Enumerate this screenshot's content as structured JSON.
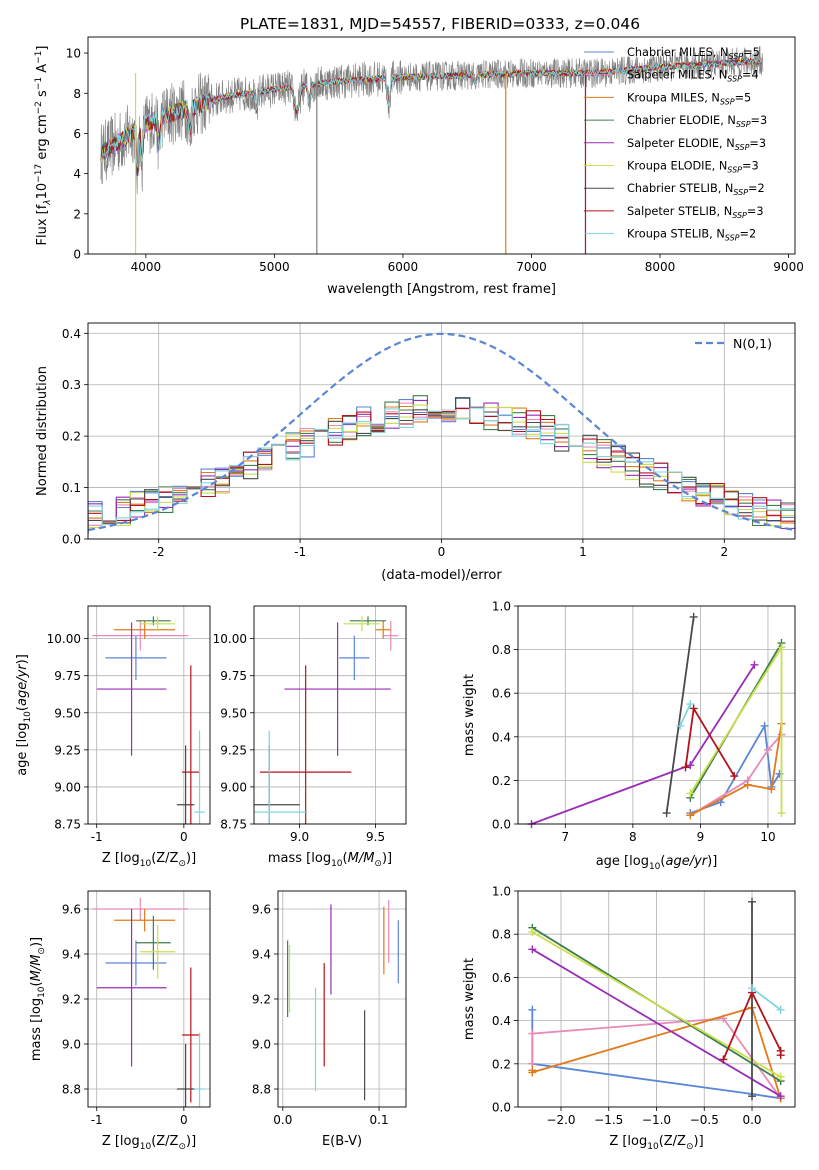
{
  "figure_title": "PLATE=1831, MJD=54557, FIBERID=0333, z=0.046",
  "colors": {
    "Chabrier MILES": "#5b86d6",
    "Salpeter MILES": "#e88ab8",
    "Kroupa MILES": "#e07b1c",
    "Chabrier ELODIE": "#3f7f4d",
    "Salpeter ELODIE": "#9a2db8",
    "Kroupa ELODIE": "#c9e04a",
    "Chabrier STELIB": "#4a4a4a",
    "Salpeter STELIB": "#b3141c",
    "Kroupa STELIB": "#7fd6e0",
    "data": "#808080",
    "normal": "#5b86d6",
    "grid": "#b0b0b0"
  },
  "chart_data": [
    {
      "id": "spectrum",
      "type": "line",
      "title": "PLATE=1831, MJD=54557, FIBERID=0333, z=0.046",
      "xlabel": "wavelength [Angstrom, rest frame]",
      "ylabel": "Flux [f_λ 10^-17 erg cm^-2 s^-1 A^-1]",
      "xlim": [
        3550,
        9050
      ],
      "ylim": [
        0,
        10.8
      ],
      "xticks": [
        4000,
        5000,
        6000,
        7000,
        8000,
        9000
      ],
      "yticks": [
        0,
        2,
        4,
        6,
        8,
        10
      ],
      "grid": false,
      "legend_position": "right",
      "legend": [
        {
          "label": "Chabrier MILES, N",
          "sub": "SSP",
          "suffix": "=5"
        },
        {
          "label": "Salpeter MILES, N",
          "sub": "SSP",
          "suffix": "=4"
        },
        {
          "label": "Kroupa MILES, N",
          "sub": "SSP",
          "suffix": "=5"
        },
        {
          "label": "Chabrier ELODIE, N",
          "sub": "SSP",
          "suffix": "=3"
        },
        {
          "label": "Salpeter ELODIE, N",
          "sub": "SSP",
          "suffix": "=3"
        },
        {
          "label": "Kroupa ELODIE, N",
          "sub": "SSP",
          "suffix": "=3"
        },
        {
          "label": "Chabrier STELIB, N",
          "sub": "SSP",
          "suffix": "=2"
        },
        {
          "label": "Salpeter STELIB, N",
          "sub": "SSP",
          "suffix": "=3"
        },
        {
          "label": "Kroupa STELIB, N",
          "sub": "SSP",
          "suffix": "=2"
        }
      ],
      "continuum": [
        [
          3650,
          5.0
        ],
        [
          3800,
          5.6
        ],
        [
          3950,
          6.3
        ],
        [
          4100,
          6.8
        ],
        [
          4300,
          7.2
        ],
        [
          4600,
          7.8
        ],
        [
          5000,
          8.2
        ],
        [
          5500,
          8.6
        ],
        [
          6000,
          8.8
        ],
        [
          6500,
          8.9
        ],
        [
          7000,
          9.0
        ],
        [
          7500,
          9.0
        ],
        [
          8000,
          9.3
        ],
        [
          8500,
          9.5
        ],
        [
          8800,
          9.6
        ]
      ]
    },
    {
      "id": "residuals",
      "type": "step",
      "xlabel": "(data-model)/error",
      "ylabel": "Normed distribution",
      "xlim": [
        -2.5,
        2.5
      ],
      "ylim": [
        0,
        0.42
      ],
      "xticks": [
        -2,
        -1,
        0,
        1,
        2
      ],
      "yticks": [
        0.0,
        0.1,
        0.2,
        0.3,
        0.4
      ],
      "grid": true,
      "legend_position": "top-right",
      "legend": [
        "N(0,1)"
      ],
      "bin_width": 0.1
    },
    {
      "id": "age_vs_Z",
      "type": "errorbar",
      "xlabel": "Z [log10(Z/Z⊙)]",
      "ylabel": "age [log10(age/yr)]",
      "xlim": [
        -1.1,
        0.3
      ],
      "ylim": [
        8.75,
        10.22
      ],
      "xticks": [
        -1,
        0
      ],
      "yticks": [
        8.75,
        9.0,
        9.25,
        9.5,
        9.75,
        10.0
      ],
      "grid": true,
      "points": [
        {
          "model": "Chabrier MILES",
          "x": -0.55,
          "xerr": 0.35,
          "y": 9.87,
          "yerr": 0.15
        },
        {
          "model": "Salpeter MILES",
          "x": -0.5,
          "xerr": 0.55,
          "y": 10.02,
          "yerr": 0.1
        },
        {
          "model": "Kroupa MILES",
          "x": -0.45,
          "xerr": 0.35,
          "y": 10.06,
          "yerr": 0.06
        },
        {
          "model": "Chabrier ELODIE",
          "x": -0.35,
          "xerr": 0.2,
          "y": 10.12,
          "yerr": 0.03
        },
        {
          "model": "Salpeter ELODIE",
          "x": -0.6,
          "xerr": 0.4,
          "y": 9.66,
          "yerr": 0.45
        },
        {
          "model": "Kroupa ELODIE",
          "x": -0.3,
          "xerr": 0.2,
          "y": 10.1,
          "yerr": 0.05
        },
        {
          "model": "Chabrier STELIB",
          "x": 0.02,
          "xerr": 0.1,
          "y": 8.88,
          "yerr": 0.4
        },
        {
          "model": "Salpeter STELIB",
          "x": 0.08,
          "xerr": 0.1,
          "y": 9.1,
          "yerr": 0.72
        },
        {
          "model": "Kroupa STELIB",
          "x": 0.18,
          "xerr": 0.06,
          "y": 8.83,
          "yerr": 0.55
        }
      ]
    },
    {
      "id": "age_vs_mass",
      "type": "errorbar",
      "xlabel": "mass [log10(M/M⊙)]",
      "ylabel": "",
      "xlim": [
        8.7,
        9.7
      ],
      "ylim": [
        8.75,
        10.22
      ],
      "xticks": [
        9.0,
        9.5
      ],
      "yticks": [
        8.75,
        9.0,
        9.25,
        9.5,
        9.75,
        10.0
      ],
      "grid": true,
      "points": [
        {
          "model": "Chabrier MILES",
          "x": 9.36,
          "xerr": 0.1,
          "y": 9.87,
          "yerr": 0.15
        },
        {
          "model": "Salpeter MILES",
          "x": 9.6,
          "xerr": 0.05,
          "y": 10.02,
          "yerr": 0.1
        },
        {
          "model": "Kroupa MILES",
          "x": 9.55,
          "xerr": 0.05,
          "y": 10.06,
          "yerr": 0.06
        },
        {
          "model": "Chabrier ELODIE",
          "x": 9.45,
          "xerr": 0.12,
          "y": 10.12,
          "yerr": 0.03
        },
        {
          "model": "Salpeter ELODIE",
          "x": 9.25,
          "xerr": 0.35,
          "y": 9.66,
          "yerr": 0.45
        },
        {
          "model": "Kroupa ELODIE",
          "x": 9.41,
          "xerr": 0.12,
          "y": 10.1,
          "yerr": 0.05
        },
        {
          "model": "Chabrier STELIB",
          "x": 8.8,
          "xerr": 0.2,
          "y": 8.88,
          "yerr": 0.4
        },
        {
          "model": "Salpeter STELIB",
          "x": 9.04,
          "xerr": 0.3,
          "y": 9.1,
          "yerr": 0.72
        },
        {
          "model": "Kroupa STELIB",
          "x": 8.8,
          "xerr": 0.25,
          "y": 8.83,
          "yerr": 0.55
        }
      ]
    },
    {
      "id": "weight_vs_age",
      "type": "line",
      "xlabel": "age [log10(age/yr)]",
      "ylabel": "mass weight",
      "xlim": [
        6.3,
        10.4
      ],
      "ylim": [
        0,
        1.0
      ],
      "xticks": [
        7,
        8,
        9,
        10
      ],
      "yticks": [
        0.0,
        0.2,
        0.4,
        0.6,
        0.8,
        1.0
      ],
      "grid": true,
      "series": [
        {
          "model": "Chabrier MILES",
          "x": [
            8.85,
            9.3,
            9.95,
            10.05,
            10.17
          ],
          "y": [
            0.05,
            0.1,
            0.45,
            0.17,
            0.23
          ]
        },
        {
          "model": "Salpeter MILES",
          "x": [
            8.85,
            9.7,
            10.0,
            10.2
          ],
          "y": [
            0.04,
            0.2,
            0.34,
            0.41
          ]
        },
        {
          "model": "Kroupa MILES",
          "x": [
            8.85,
            9.7,
            10.05,
            10.2
          ],
          "y": [
            0.04,
            0.18,
            0.16,
            0.46
          ]
        },
        {
          "model": "Chabrier ELODIE",
          "x": [
            8.85,
            10.2
          ],
          "y": [
            0.12,
            0.83
          ]
        },
        {
          "model": "Salpeter ELODIE",
          "x": [
            6.5,
            8.85,
            9.8
          ],
          "y": [
            0.0,
            0.27,
            0.73
          ]
        },
        {
          "model": "Kroupa ELODIE",
          "x": [
            8.85,
            10.2,
            10.2
          ],
          "y": [
            0.14,
            0.81,
            0.05
          ]
        },
        {
          "model": "Chabrier STELIB",
          "x": [
            8.5,
            8.9
          ],
          "y": [
            0.05,
            0.95
          ]
        },
        {
          "model": "Salpeter STELIB",
          "x": [
            8.78,
            8.9,
            9.5
          ],
          "y": [
            0.26,
            0.53,
            0.22
          ]
        },
        {
          "model": "Kroupa STELIB",
          "x": [
            8.7,
            8.85
          ],
          "y": [
            0.45,
            0.55
          ]
        }
      ]
    },
    {
      "id": "mass_vs_Z",
      "type": "errorbar",
      "xlabel": "Z [log10(Z/Z⊙)]",
      "ylabel": "mass [log10(M/M⊙)]",
      "xlim": [
        -1.1,
        0.3
      ],
      "ylim": [
        8.72,
        9.68
      ],
      "xticks": [
        -1,
        0
      ],
      "yticks": [
        8.8,
        9.0,
        9.2,
        9.4,
        9.6
      ],
      "grid": true,
      "points": [
        {
          "model": "Chabrier MILES",
          "x": -0.55,
          "xerr": 0.35,
          "y": 9.36,
          "yerr": 0.1
        },
        {
          "model": "Salpeter MILES",
          "x": -0.5,
          "xerr": 0.55,
          "y": 9.6,
          "yerr": 0.05
        },
        {
          "model": "Kroupa MILES",
          "x": -0.45,
          "xerr": 0.35,
          "y": 9.55,
          "yerr": 0.05
        },
        {
          "model": "Chabrier ELODIE",
          "x": -0.35,
          "xerr": 0.2,
          "y": 9.45,
          "yerr": 0.12
        },
        {
          "model": "Salpeter ELODIE",
          "x": -0.6,
          "xerr": 0.4,
          "y": 9.25,
          "yerr": 0.35
        },
        {
          "model": "Kroupa ELODIE",
          "x": -0.3,
          "xerr": 0.2,
          "y": 9.41,
          "yerr": 0.12
        },
        {
          "model": "Chabrier STELIB",
          "x": 0.02,
          "xerr": 0.1,
          "y": 8.8,
          "yerr": 0.2
        },
        {
          "model": "Salpeter STELIB",
          "x": 0.08,
          "xerr": 0.1,
          "y": 9.04,
          "yerr": 0.3
        },
        {
          "model": "Kroupa STELIB",
          "x": 0.18,
          "xerr": 0.06,
          "y": 8.8,
          "yerr": 0.25
        }
      ]
    },
    {
      "id": "mass_vs_ebv",
      "type": "errorbar",
      "xlabel": "E(B-V)",
      "ylabel": "",
      "xlim": [
        -0.005,
        0.128
      ],
      "ylim": [
        8.72,
        9.68
      ],
      "xticks": [
        0.0,
        0.1
      ],
      "yticks": [
        8.8,
        9.0,
        9.2,
        9.4,
        9.6
      ],
      "grid": true,
      "points": [
        {
          "model": "Chabrier MILES",
          "x": 0.12,
          "xerr": 0,
          "y": 9.41,
          "yerr": 0.14
        },
        {
          "model": "Salpeter MILES",
          "x": 0.11,
          "xerr": 0,
          "y": 9.5,
          "yerr": 0.14
        },
        {
          "model": "Kroupa MILES",
          "x": 0.105,
          "xerr": 0,
          "y": 9.46,
          "yerr": 0.15
        },
        {
          "model": "Chabrier ELODIE",
          "x": 0.005,
          "xerr": 0,
          "y": 9.29,
          "yerr": 0.17
        },
        {
          "model": "Salpeter ELODIE",
          "x": 0.05,
          "xerr": 0,
          "y": 9.42,
          "yerr": 0.2
        },
        {
          "model": "Kroupa ELODIE",
          "x": 0.007,
          "xerr": 0,
          "y": 9.29,
          "yerr": 0.15
        },
        {
          "model": "Chabrier STELIB",
          "x": 0.085,
          "xerr": 0,
          "y": 8.95,
          "yerr": 0.2
        },
        {
          "model": "Salpeter STELIB",
          "x": 0.043,
          "xerr": 0,
          "y": 9.13,
          "yerr": 0.23
        },
        {
          "model": "Kroupa STELIB",
          "x": 0.034,
          "xerr": 0,
          "y": 9.02,
          "yerr": 0.23
        }
      ]
    },
    {
      "id": "weight_vs_Z",
      "type": "line",
      "xlabel": "Z [log10(Z/Z⊙)]",
      "ylabel": "mass weight",
      "xlim": [
        -2.45,
        0.45
      ],
      "ylim": [
        0,
        1.0
      ],
      "xticks": [
        -2.0,
        -1.5,
        -1.0,
        -0.5,
        0.0
      ],
      "yticks": [
        0.0,
        0.2,
        0.4,
        0.6,
        0.8,
        1.0
      ],
      "grid": true,
      "series": [
        {
          "model": "Chabrier MILES",
          "x": [
            -2.3,
            -2.3,
            0.0,
            0.3
          ],
          "y": [
            0.45,
            0.2,
            0.06,
            0.04
          ]
        },
        {
          "model": "Salpeter MILES",
          "x": [
            -2.3,
            -2.3,
            -0.3,
            0.3
          ],
          "y": [
            0.2,
            0.34,
            0.41,
            0.04
          ]
        },
        {
          "model": "Kroupa MILES",
          "x": [
            -2.3,
            -2.3,
            0.0,
            0.3
          ],
          "y": [
            0.17,
            0.16,
            0.46,
            0.04
          ]
        },
        {
          "model": "Chabrier ELODIE",
          "x": [
            -2.3,
            0.3
          ],
          "y": [
            0.83,
            0.12
          ]
        },
        {
          "model": "Salpeter ELODIE",
          "x": [
            -2.3,
            0.3
          ],
          "y": [
            0.73,
            0.05
          ]
        },
        {
          "model": "Kroupa ELODIE",
          "x": [
            -2.3,
            0.3
          ],
          "y": [
            0.81,
            0.14
          ]
        },
        {
          "model": "Chabrier STELIB",
          "x": [
            0.0,
            0.0
          ],
          "y": [
            0.05,
            0.95
          ]
        },
        {
          "model": "Salpeter STELIB",
          "x": [
            -0.3,
            0.0,
            0.3,
            0.3
          ],
          "y": [
            0.22,
            0.53,
            0.26,
            0.24
          ]
        },
        {
          "model": "Kroupa STELIB",
          "x": [
            0.0,
            0.3
          ],
          "y": [
            0.55,
            0.45
          ]
        }
      ]
    }
  ]
}
